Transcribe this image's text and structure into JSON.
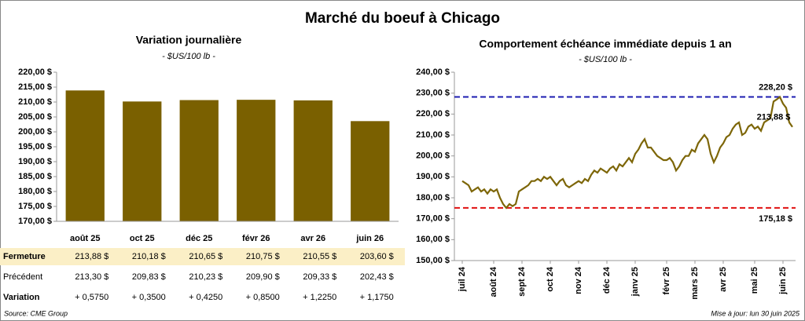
{
  "title": "Marché du boeuf à Chicago",
  "chart_data": [
    {
      "type": "bar",
      "title": "Variation journalière",
      "subtitle": "- $US/100 lb -",
      "categories": [
        "août 25",
        "oct 25",
        "déc 25",
        "févr 26",
        "avr 26",
        "juin 26"
      ],
      "values": [
        213.88,
        210.18,
        210.65,
        210.75,
        210.55,
        203.6
      ],
      "color": "#7a6000",
      "ylim": [
        170,
        220
      ],
      "yticks": [
        {
          "value": 170,
          "label": "170,00 $"
        },
        {
          "value": 175,
          "label": "175,00 $"
        },
        {
          "value": 180,
          "label": "180,00 $"
        },
        {
          "value": 185,
          "label": "185,00 $"
        },
        {
          "value": 190,
          "label": "190,00 $"
        },
        {
          "value": 195,
          "label": "195,00 $"
        },
        {
          "value": 200,
          "label": "200,00 $"
        },
        {
          "value": 205,
          "label": "205,00 $"
        },
        {
          "value": 210,
          "label": "210,00 $"
        },
        {
          "value": 215,
          "label": "215,00 $"
        },
        {
          "value": 220,
          "label": "220,00 $"
        }
      ],
      "grid": false
    },
    {
      "type": "line",
      "title": "Comportement échéance immédiate depuis 1 an",
      "subtitle": "- $US/100 lb -",
      "color": "#7d6608",
      "values": [
        188,
        187,
        186,
        183,
        184,
        185,
        183,
        184,
        182,
        184,
        183,
        184,
        180,
        177,
        175.18,
        177,
        176,
        177,
        183,
        184,
        185,
        186,
        188,
        188,
        189,
        188,
        190,
        189,
        190,
        188,
        186,
        188,
        189,
        186,
        185,
        186,
        187,
        188,
        187,
        189,
        188,
        191,
        193,
        192,
        194,
        193,
        192,
        194,
        195,
        193,
        196,
        195,
        197,
        199,
        197,
        201,
        203,
        206,
        208,
        204,
        204,
        202,
        200,
        199,
        198,
        198,
        199,
        197,
        193,
        195,
        198,
        200,
        200,
        203,
        202,
        206,
        208,
        210,
        208,
        201,
        197,
        200,
        204,
        206,
        209,
        210,
        213,
        215,
        216,
        210,
        211,
        214,
        215,
        213,
        214,
        212,
        216,
        217,
        218,
        226,
        227,
        228.2,
        225,
        223,
        216,
        213.88
      ],
      "value_labels": {
        "105": "213,88 $"
      },
      "xlim": [
        0,
        105
      ],
      "xticks": [
        {
          "value": 0,
          "label": "juil 24"
        },
        {
          "value": 10,
          "label": "août 24"
        },
        {
          "value": 19,
          "label": "sept 24"
        },
        {
          "value": 28,
          "label": "oct 24"
        },
        {
          "value": 37,
          "label": "nov 24"
        },
        {
          "value": 46,
          "label": "déc 24"
        },
        {
          "value": 55,
          "label": "janv 25"
        },
        {
          "value": 65,
          "label": "févr 25"
        },
        {
          "value": 74,
          "label": "mars 25"
        },
        {
          "value": 83,
          "label": "avr 25"
        },
        {
          "value": 93,
          "label": "mai 25"
        },
        {
          "value": 102,
          "label": "juin 25"
        }
      ],
      "ylim": [
        150,
        240
      ],
      "yticks": [
        {
          "value": 150,
          "label": "150,00 $"
        },
        {
          "value": 160,
          "label": "160,00 $"
        },
        {
          "value": 170,
          "label": "170,00 $"
        },
        {
          "value": 180,
          "label": "180,00 $"
        },
        {
          "value": 190,
          "label": "190,00 $"
        },
        {
          "value": 200,
          "label": "200,00 $"
        },
        {
          "value": 210,
          "label": "210,00 $"
        },
        {
          "value": 220,
          "label": "220,00 $"
        },
        {
          "value": 230,
          "label": "230,00 $"
        },
        {
          "value": 240,
          "label": "240,00 $"
        }
      ],
      "reference_lines": [
        {
          "value": 228.2,
          "label": "228,20 $",
          "color": "#1c1cb0"
        },
        {
          "value": 175.18,
          "label": "175,18 $",
          "color": "#e01010"
        }
      ],
      "grid": false
    }
  ],
  "table": {
    "rows": [
      [
        "Fermeture",
        "213,88 $",
        "210,18 $",
        "210,65 $",
        "210,75 $",
        "210,55 $",
        "203,60 $"
      ],
      [
        "Précédent",
        "213,30 $",
        "209,83 $",
        "210,23 $",
        "209,90 $",
        "209,33 $",
        "202,43 $"
      ],
      [
        "Variation",
        "+ 0,5750",
        "+ 0,3500",
        "+ 0,4250",
        "+ 0,8500",
        "+ 1,2250",
        "+ 1,1750"
      ]
    ]
  },
  "source": "Source: CME Group",
  "updated": "Mise à jour: lun 30 juin 2025"
}
